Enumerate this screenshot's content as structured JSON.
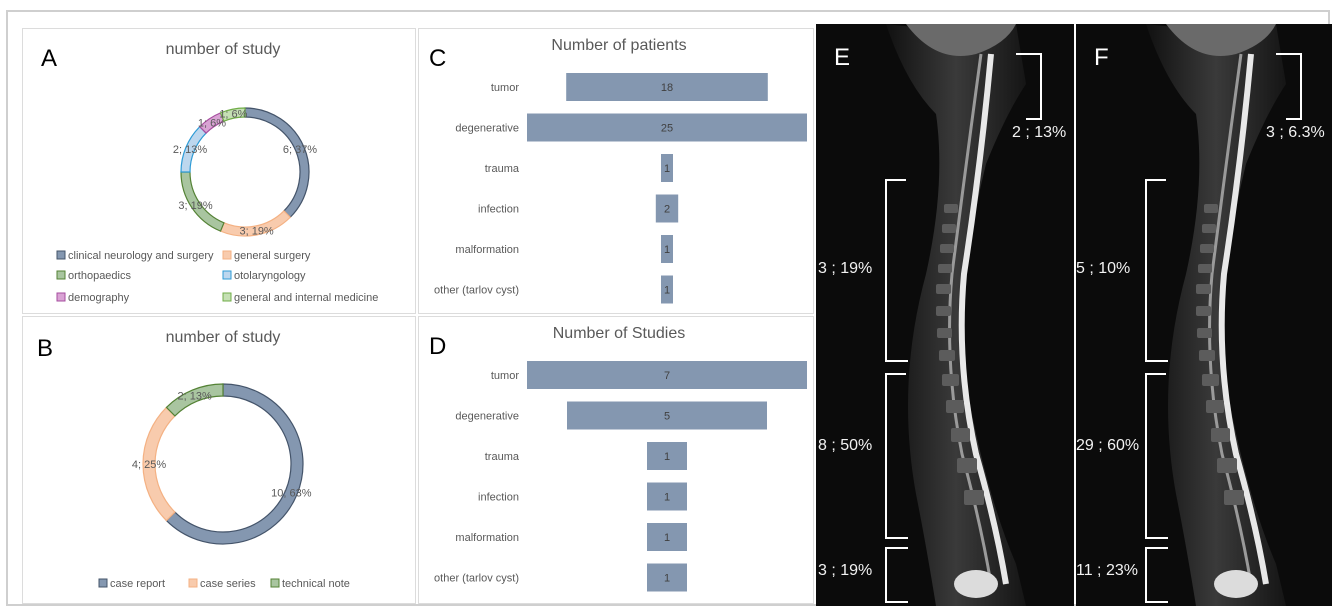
{
  "panels": {
    "A": {
      "label": "A",
      "chart_data": {
        "type": "pie",
        "title": "number of study",
        "donut": true,
        "slices": [
          {
            "name": "clinical neurology and surgery",
            "value": 6,
            "label": "6; 37%",
            "color": "#8497b0",
            "border": "#44546a"
          },
          {
            "name": "general surgery",
            "value": 3,
            "label": "3; 19%",
            "color": "#ffffff",
            "border": "#f4b183",
            "fill": "#f8cbad"
          },
          {
            "name": "orthopaedics",
            "value": 3,
            "label": "3; 19%",
            "color": "#a9c5a0",
            "border": "#548235"
          },
          {
            "name": "otolaryngology",
            "value": 2,
            "label": "2; 13%",
            "color": "#bdd7ee",
            "border": "#2e9bd6"
          },
          {
            "name": "demography",
            "value": 1,
            "label": "1; 6%",
            "color": "#d9a3d4",
            "border": "#a64d9f"
          },
          {
            "name": "general and internal medicine",
            "value": 1,
            "label": "1; 6%",
            "color": "#c5e0b4",
            "border": "#70ad47"
          }
        ],
        "legend": [
          {
            "name": "clinical neurology and surgery",
            "color": "#8497b0",
            "border": "#44546a"
          },
          {
            "name": "general surgery",
            "color": "#f8cbad",
            "border": "#f4b183"
          },
          {
            "name": "orthopaedics",
            "color": "#a9c5a0",
            "border": "#548235"
          },
          {
            "name": "otolaryngology",
            "color": "#bdd7ee",
            "border": "#2e9bd6"
          },
          {
            "name": "demography",
            "color": "#d9a3d4",
            "border": "#a64d9f"
          },
          {
            "name": "general and internal medicine",
            "color": "#c5e0b4",
            "border": "#70ad47"
          }
        ],
        "legend_position": "bottom"
      }
    },
    "B": {
      "label": "B",
      "chart_data": {
        "type": "pie",
        "title": "number of study",
        "donut": true,
        "slices": [
          {
            "name": "case report",
            "value": 10,
            "label": "10; 63%",
            "color": "#8497b0",
            "border": "#44546a"
          },
          {
            "name": "case series",
            "value": 4,
            "label": "4; 25%",
            "color": "#f8cbad",
            "border": "#f4b183"
          },
          {
            "name": "technical note",
            "value": 2,
            "label": "2; 13%",
            "color": "#a9c5a0",
            "border": "#548235"
          }
        ],
        "legend": [
          {
            "name": "case report",
            "color": "#8497b0",
            "border": "#44546a"
          },
          {
            "name": "case series",
            "color": "#f8cbad",
            "border": "#f4b183"
          },
          {
            "name": "technical note",
            "color": "#a9c5a0",
            "border": "#548235"
          }
        ],
        "legend_position": "bottom"
      }
    },
    "C": {
      "label": "C",
      "chart_data": {
        "type": "bar",
        "orientation": "horizontal-centered",
        "title": "Number of patients",
        "categories": [
          "tumor",
          "degenerative",
          "trauma",
          "infection",
          "malformation",
          "other (tarlov cyst)"
        ],
        "values": [
          18,
          25,
          1,
          2,
          1,
          1
        ],
        "color": "#8497b0"
      }
    },
    "D": {
      "label": "D",
      "chart_data": {
        "type": "bar",
        "orientation": "horizontal-centered",
        "title": "Number of Studies",
        "categories": [
          "tumor",
          "degenerative",
          "trauma",
          "infection",
          "malformation",
          "other (tarlov cyst)"
        ],
        "values": [
          7,
          5,
          1,
          1,
          1,
          1
        ],
        "color": "#8497b0"
      }
    },
    "E": {
      "label": "E",
      "annotations": [
        {
          "text": "2 ; 13%",
          "region": "cervical"
        },
        {
          "text": "3 ; 19%",
          "region": "thoracic"
        },
        {
          "text": "8 ; 50%",
          "region": "lumbar"
        },
        {
          "text": "3 ; 19%",
          "region": "sacral"
        }
      ]
    },
    "F": {
      "label": "F",
      "annotations": [
        {
          "text": "3 ; 6.3%",
          "region": "cervical"
        },
        {
          "text": "5 ; 10%",
          "region": "thoracic"
        },
        {
          "text": "29 ; 60%",
          "region": "lumbar"
        },
        {
          "text": "11 ; 23%",
          "region": "sacral"
        }
      ]
    }
  }
}
